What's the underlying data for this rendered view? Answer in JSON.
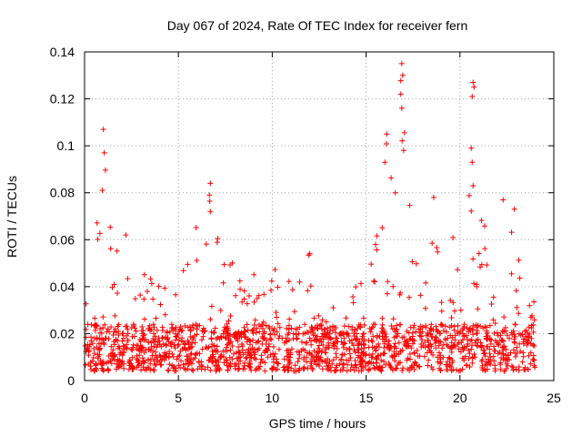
{
  "chart_data": {
    "type": "scatter",
    "title": "Day 067 of 2024, Rate Of TEC Index for receiver fern",
    "xlabel": "GPS time / hours",
    "ylabel": "ROTI / TECUs",
    "xlim": [
      0,
      25
    ],
    "ylim": [
      0,
      0.14
    ],
    "x_ticks": [
      0,
      5,
      10,
      15,
      20,
      25
    ],
    "x_tick_labels": [
      "0",
      "5",
      "10",
      "15",
      "20",
      "25"
    ],
    "y_ticks": [
      0,
      0.02,
      0.04,
      0.06,
      0.08,
      0.1,
      0.12,
      0.14
    ],
    "y_tick_labels": [
      "0",
      "0.02",
      "0.04",
      "0.06",
      "0.08",
      "0.1",
      "0.12",
      "0.14"
    ],
    "grid": true,
    "marker": "+",
    "marker_color": "#ff0000",
    "series_name": "ROTI",
    "data_range_hours": [
      0,
      24
    ],
    "envelope": [
      {
        "x": 0.0,
        "y": 0.03
      },
      {
        "x": 0.3,
        "y": 0.045
      },
      {
        "x": 0.7,
        "y": 0.07
      },
      {
        "x": 1.0,
        "y": 0.107
      },
      {
        "x": 1.5,
        "y": 0.06
      },
      {
        "x": 2.2,
        "y": 0.062
      },
      {
        "x": 2.8,
        "y": 0.05
      },
      {
        "x": 4.0,
        "y": 0.044
      },
      {
        "x": 5.5,
        "y": 0.057
      },
      {
        "x": 6.7,
        "y": 0.084
      },
      {
        "x": 7.5,
        "y": 0.052
      },
      {
        "x": 9.0,
        "y": 0.048
      },
      {
        "x": 10.5,
        "y": 0.05
      },
      {
        "x": 12.0,
        "y": 0.054
      },
      {
        "x": 12.5,
        "y": 0.03
      },
      {
        "x": 14.0,
        "y": 0.036
      },
      {
        "x": 15.5,
        "y": 0.058
      },
      {
        "x": 16.0,
        "y": 0.105
      },
      {
        "x": 16.5,
        "y": 0.08
      },
      {
        "x": 16.9,
        "y": 0.135
      },
      {
        "x": 17.5,
        "y": 0.05
      },
      {
        "x": 18.6,
        "y": 0.078
      },
      {
        "x": 19.5,
        "y": 0.065
      },
      {
        "x": 20.7,
        "y": 0.127
      },
      {
        "x": 21.5,
        "y": 0.05
      },
      {
        "x": 22.3,
        "y": 0.077
      },
      {
        "x": 22.9,
        "y": 0.073
      },
      {
        "x": 23.5,
        "y": 0.05
      },
      {
        "x": 24.0,
        "y": 0.035
      }
    ],
    "outliers": [
      {
        "x": 1.0,
        "y": 0.107
      },
      {
        "x": 1.05,
        "y": 0.097
      },
      {
        "x": 0.95,
        "y": 0.081
      },
      {
        "x": 6.7,
        "y": 0.084
      },
      {
        "x": 6.65,
        "y": 0.079
      },
      {
        "x": 6.7,
        "y": 0.072
      },
      {
        "x": 16.1,
        "y": 0.105
      },
      {
        "x": 16.0,
        "y": 0.093
      },
      {
        "x": 16.9,
        "y": 0.135
      },
      {
        "x": 16.95,
        "y": 0.13
      },
      {
        "x": 16.85,
        "y": 0.122
      },
      {
        "x": 16.9,
        "y": 0.116
      },
      {
        "x": 17.0,
        "y": 0.098
      },
      {
        "x": 20.7,
        "y": 0.127
      },
      {
        "x": 20.75,
        "y": 0.125
      },
      {
        "x": 20.65,
        "y": 0.121
      },
      {
        "x": 20.6,
        "y": 0.099
      },
      {
        "x": 20.65,
        "y": 0.093
      },
      {
        "x": 20.7,
        "y": 0.083
      },
      {
        "x": 18.6,
        "y": 0.078
      },
      {
        "x": 22.3,
        "y": 0.077
      },
      {
        "x": 22.9,
        "y": 0.073
      },
      {
        "x": 2.2,
        "y": 0.062
      },
      {
        "x": 12.0,
        "y": 0.054
      }
    ]
  }
}
